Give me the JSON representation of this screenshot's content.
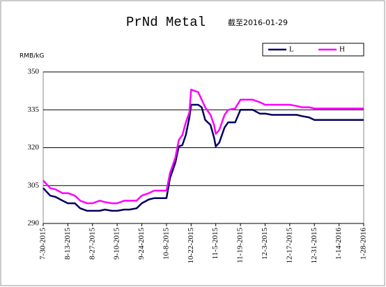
{
  "chart_data": {
    "type": "line",
    "title": "PrNd Metal",
    "subtitle": "截至2016-01-29",
    "y_label": "RMB/kG",
    "x": [
      "7-30-2015",
      "8-3-2015",
      "8-6-2015",
      "8-10-2015",
      "8-13-2015",
      "8-17-2015",
      "8-20-2015",
      "8-24-2015",
      "8-27-2015",
      "8-31-2015",
      "9-3-2015",
      "9-7-2015",
      "9-10-2015",
      "9-14-2015",
      "9-17-2015",
      "9-21-2015",
      "9-24-2015",
      "9-28-2015",
      "10-1-2015",
      "10-5-2015",
      "10-8-2015",
      "10-10-2015",
      "10-13-2015",
      "10-15-2015",
      "10-17-2015",
      "10-19-2015",
      "10-21-2015",
      "10-22-2015",
      "10-26-2015",
      "10-28-2015",
      "10-30-2015",
      "11-2-2015",
      "11-4-2015",
      "11-5-2015",
      "11-7-2015",
      "11-10-2015",
      "11-12-2015",
      "11-16-2015",
      "11-19-2015",
      "11-23-2015",
      "11-26-2015",
      "11-30-2015",
      "12-3-2015",
      "12-7-2015",
      "12-10-2015",
      "12-14-2015",
      "12-17-2015",
      "12-21-2015",
      "12-24-2015",
      "12-28-2015",
      "12-31-2015",
      "1-7-2016",
      "1-14-2016",
      "1-21-2016",
      "1-28-2016"
    ],
    "series": [
      {
        "name": "L",
        "color": "#00005e",
        "values": [
          304,
          301,
          300.5,
          299,
          298,
          298,
          296,
          295,
          295,
          295,
          295.5,
          295,
          295,
          295.5,
          295.5,
          296,
          298,
          299.5,
          300,
          300,
          300,
          308,
          314,
          320.5,
          321,
          325,
          332,
          337,
          337,
          336,
          331,
          329,
          324,
          320.5,
          322,
          328,
          330,
          330,
          335,
          335,
          335,
          333.5,
          333.5,
          333,
          333,
          333,
          333,
          333,
          332.5,
          332,
          331,
          331,
          331,
          331,
          331
        ]
      },
      {
        "name": "H",
        "color": "#ff00ff",
        "values": [
          307,
          304,
          303.5,
          302,
          302,
          301,
          299,
          298,
          298,
          299,
          298.5,
          298,
          298,
          299,
          299,
          299,
          301,
          302,
          303,
          303,
          303,
          310,
          316,
          323,
          325,
          330,
          334,
          343,
          342,
          339,
          336,
          333,
          329,
          325.5,
          327,
          333,
          335,
          335.5,
          339,
          339,
          339,
          338,
          337,
          337,
          337,
          337,
          337,
          336.5,
          336,
          336,
          335.5,
          335.5,
          335.5,
          335.5,
          335.5
        ]
      }
    ],
    "xlim": [
      "7-30-2015",
      "1-28-2016"
    ],
    "xticks": [
      "7-30-2015",
      "8-13-2015",
      "8-27-2015",
      "9-10-2015",
      "9-24-2015",
      "10-8-2015",
      "10-22-2015",
      "11-5-2015",
      "11-19-2015",
      "12-3-2015",
      "12-17-2015",
      "12-31-2015",
      "1-14-2016",
      "1-28-2016"
    ],
    "ylim": [
      290,
      350
    ],
    "yticks": [
      290,
      305,
      320,
      335,
      350
    ],
    "grid": true,
    "legend": "top-right"
  }
}
